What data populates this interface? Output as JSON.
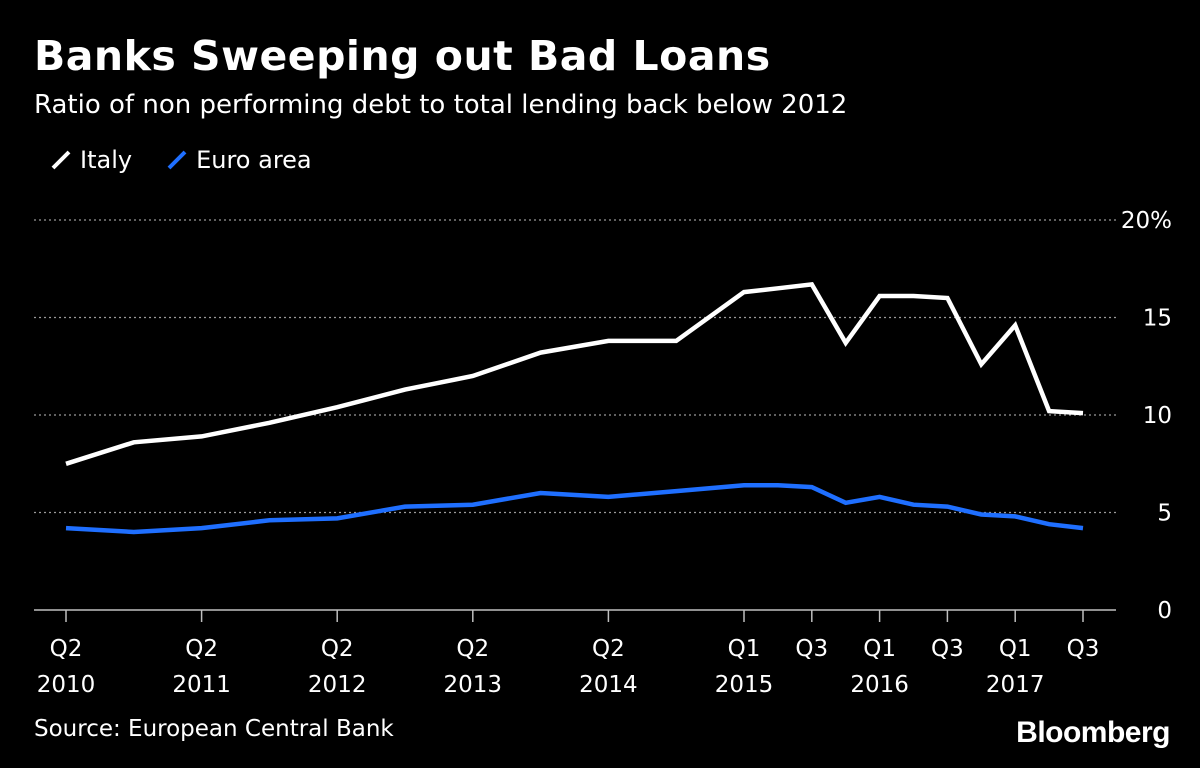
{
  "header": {
    "title": "Banks Sweeping out Bad Loans",
    "subtitle": "Ratio of non performing debt to total lending back below 2012"
  },
  "footer": {
    "source": "Source: European Central Bank",
    "logo": "Bloomberg"
  },
  "colors": {
    "background": "#000000",
    "italy": "#ffffff",
    "euro_area": "#1f6fff",
    "grid": "#9a9a9a",
    "axis": "#bfbfbf",
    "text": "#ffffff"
  },
  "chart_data": {
    "type": "line",
    "x": [
      "Q2 2010",
      "Q4 2010",
      "Q2 2011",
      "Q4 2011",
      "Q2 2012",
      "Q4 2012",
      "Q2 2013",
      "Q4 2013",
      "Q2 2014",
      "Q4 2014",
      "Q1 2015",
      "Q2 2015",
      "Q3 2015",
      "Q4 2015",
      "Q1 2016",
      "Q2 2016",
      "Q3 2016",
      "Q4 2016",
      "Q1 2017",
      "Q2 2017",
      "Q3 2017"
    ],
    "x_positions": [
      0,
      2,
      4,
      6,
      8,
      10,
      12,
      14,
      16,
      18,
      20,
      21,
      22,
      23,
      24,
      25,
      26,
      27,
      28,
      29,
      30
    ],
    "series": [
      {
        "name": "Italy",
        "color": "#ffffff",
        "values": [
          7.5,
          8.6,
          8.9,
          9.6,
          10.4,
          11.3,
          12.0,
          13.2,
          13.8,
          13.8,
          16.3,
          16.5,
          16.7,
          13.7,
          16.1,
          16.1,
          16.0,
          12.6,
          14.6,
          10.2,
          10.1
        ]
      },
      {
        "name": "Euro area",
        "color": "#1f6fff",
        "values": [
          4.2,
          4.0,
          4.2,
          4.6,
          4.7,
          5.3,
          5.4,
          6.0,
          5.8,
          6.1,
          6.4,
          6.4,
          6.3,
          5.5,
          5.8,
          5.4,
          5.3,
          4.9,
          4.8,
          4.4,
          4.2
        ]
      }
    ],
    "xticks": [
      {
        "pos": 0,
        "lines": [
          "Q2",
          "2010"
        ]
      },
      {
        "pos": 4,
        "lines": [
          "Q2",
          "2011"
        ]
      },
      {
        "pos": 8,
        "lines": [
          "Q2",
          "2012"
        ]
      },
      {
        "pos": 12,
        "lines": [
          "Q2",
          "2013"
        ]
      },
      {
        "pos": 16,
        "lines": [
          "Q2",
          "2014"
        ]
      },
      {
        "pos": 20,
        "lines": [
          "Q1",
          "2015"
        ]
      },
      {
        "pos": 22,
        "lines": [
          "Q3",
          ""
        ]
      },
      {
        "pos": 24,
        "lines": [
          "Q1",
          "2016"
        ]
      },
      {
        "pos": 26,
        "lines": [
          "Q3",
          ""
        ]
      },
      {
        "pos": 28,
        "lines": [
          "Q1",
          "2017"
        ]
      },
      {
        "pos": 30,
        "lines": [
          "Q3",
          ""
        ]
      }
    ],
    "yticks": [
      0,
      5,
      10,
      15,
      20
    ],
    "ytick_labels": [
      "0",
      "5",
      "10",
      "15",
      "20%"
    ],
    "ylim": [
      0,
      20
    ],
    "xlim": [
      0,
      30
    ],
    "grid": true,
    "legend_position": "top-left"
  }
}
